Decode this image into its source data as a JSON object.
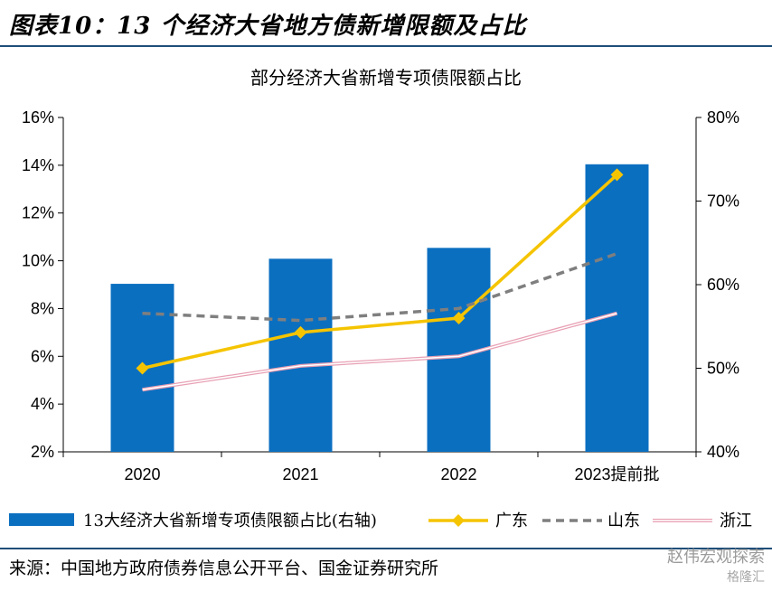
{
  "header": {
    "title": "图表10：13 个经济大省地方债新增限额及占比"
  },
  "footer": {
    "source": "来源：中国地方政府债券信息公开平台、国金证券研究所",
    "watermark": "赵伟宏观探索",
    "watermark_sub": "格隆汇"
  },
  "colors": {
    "bar": "#0b6fc0",
    "guangdong": "#f5c400",
    "shandong": "#7f7f7f",
    "zhejiang": "#e8a0b4",
    "rule": "#1f4e79"
  },
  "chart_data": {
    "type": "bar",
    "title": "部分经济大省新增专项债限额占比",
    "categories": [
      "2020",
      "2021",
      "2022",
      "2023提前批"
    ],
    "y_left": {
      "min": 2,
      "max": 16,
      "ticks": [
        "2%",
        "4%",
        "6%",
        "8%",
        "10%",
        "12%",
        "14%",
        "16%"
      ]
    },
    "y_right": {
      "min": 40,
      "max": 80,
      "ticks": [
        "40%",
        "50%",
        "60%",
        "70%",
        "80%"
      ]
    },
    "grid": false,
    "legend_position": "bottom",
    "series": [
      {
        "name": "13大经济大省新增专项债限额占比(右轴)",
        "kind": "bar",
        "axis": "right",
        "values": [
          60.1,
          63.1,
          64.4,
          74.4
        ],
        "color": "#0b6fc0"
      },
      {
        "name": "广东",
        "kind": "line",
        "axis": "left",
        "marker": "diamond",
        "values": [
          5.5,
          7.0,
          7.6,
          13.6
        ],
        "color": "#f5c400"
      },
      {
        "name": "山东",
        "kind": "line",
        "axis": "left",
        "dash": true,
        "values": [
          7.8,
          7.5,
          8.0,
          10.3
        ],
        "color": "#7f7f7f"
      },
      {
        "name": "浙江",
        "kind": "line",
        "axis": "left",
        "double": true,
        "values": [
          4.6,
          5.6,
          6.0,
          7.8
        ],
        "color": "#e8a0b4"
      }
    ]
  }
}
